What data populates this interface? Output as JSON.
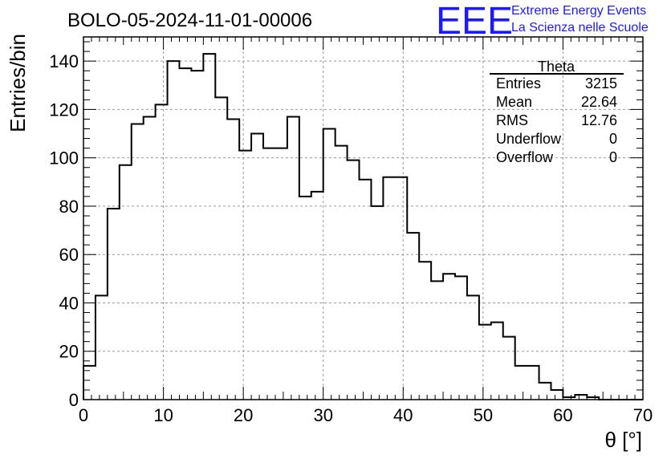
{
  "title": "BOLO-05-2024-11-01-00006",
  "logo": {
    "mark": "EEE",
    "line1": "Extreme Energy Events",
    "line2": "La Scienza nelle Scuole",
    "color": "#1a1aff"
  },
  "stats": {
    "name": "Theta",
    "rows": [
      {
        "label": "Entries",
        "value": "3215"
      },
      {
        "label": "Mean",
        "value": "22.64"
      },
      {
        "label": "RMS",
        "value": "12.76"
      },
      {
        "label": "Underflow",
        "value": "0"
      },
      {
        "label": "Overflow",
        "value": "0"
      }
    ]
  },
  "chart_data": {
    "type": "histogram",
    "xlabel": "θ [°]",
    "ylabel": "Entries/bin",
    "xlim": [
      0,
      70
    ],
    "ylim": [
      0,
      150
    ],
    "xticks": [
      0,
      10,
      20,
      30,
      40,
      50,
      60,
      70
    ],
    "yticks": [
      0,
      20,
      40,
      60,
      80,
      100,
      120,
      140
    ],
    "grid": true,
    "legend": "top-right stats box",
    "bin_width": 1.5,
    "bin_start": 0,
    "values": [
      14,
      43,
      79,
      97,
      114,
      117,
      122,
      140,
      137,
      136,
      143,
      125,
      116,
      103,
      110,
      104,
      104,
      117,
      84,
      86,
      112,
      105,
      99,
      91,
      80,
      92,
      92,
      69,
      57,
      49,
      52,
      51,
      43,
      31,
      32,
      26,
      14,
      14,
      7,
      4,
      1,
      2,
      1,
      0,
      0,
      0,
      0
    ]
  }
}
